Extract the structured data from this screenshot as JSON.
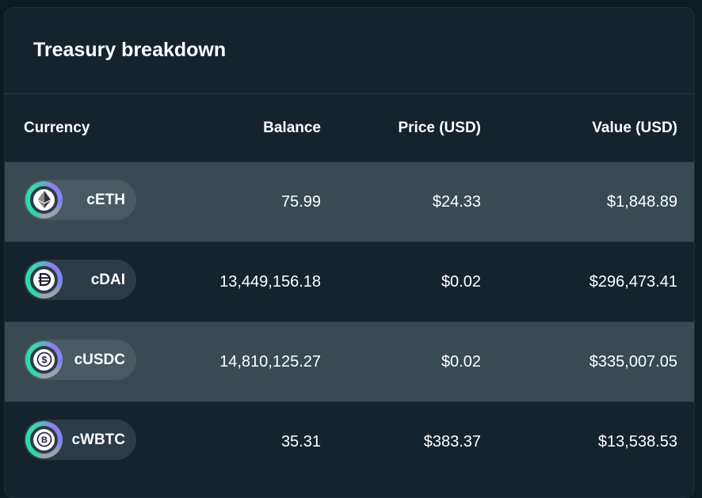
{
  "title": "Treasury breakdown",
  "columns": {
    "currency": "Currency",
    "balance": "Balance",
    "price": "Price (USD)",
    "value": "Value (USD)"
  },
  "rows": [
    {
      "symbol": "cETH",
      "icon": "ethereum-icon",
      "balance": "75.99",
      "price": "$24.33",
      "value": "$1,848.89"
    },
    {
      "symbol": "cDAI",
      "icon": "dai-icon",
      "balance": "13,449,156.18",
      "price": "$0.02",
      "value": "$296,473.41"
    },
    {
      "symbol": "cUSDC",
      "icon": "usdc-icon",
      "balance": "14,810,125.27",
      "price": "$0.02",
      "value": "$335,007.05"
    },
    {
      "symbol": "cWBTC",
      "icon": "bitcoin-icon",
      "balance": "35.31",
      "price": "$383.37",
      "value": "$13,538.53"
    }
  ],
  "colors": {
    "background": "#15232d",
    "row_highlight": "#3a4a52",
    "accent_teal": "#2fd6a7",
    "accent_purple": "#8e7bf2"
  }
}
